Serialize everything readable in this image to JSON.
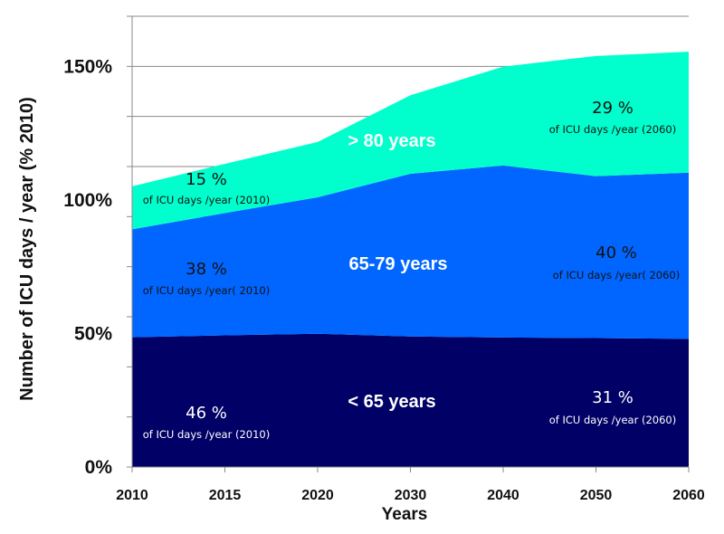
{
  "chart_data": {
    "type": "area",
    "stacked": true,
    "title": "",
    "xlabel": "Years",
    "ylabel": "Number of ICU days / year (% 2010)",
    "categories": [
      "2010",
      "2015",
      "2020",
      "2030",
      "2040",
      "2050",
      "2060"
    ],
    "ylim": [
      0,
      168.75
    ],
    "yticks": [
      0,
      50,
      100,
      150
    ],
    "ytick_labels": [
      "0%",
      "50%",
      "100%",
      "150%"
    ],
    "grid": true,
    "series": [
      {
        "name": "< 65 years",
        "color": "#000066",
        "values": [
          48.6,
          49.3,
          49.9,
          48.9,
          48.5,
          48.3,
          48.0
        ]
      },
      {
        "name": "65-79 years",
        "color": "#0066ff",
        "values": [
          40.4,
          45.8,
          51.1,
          60.9,
          64.4,
          60.6,
          62.2
        ]
      },
      {
        "name": "> 80 years",
        "color": "#00ffcc",
        "values": [
          16.1,
          18.4,
          20.7,
          29.4,
          37.0,
          45.0,
          45.3
        ]
      }
    ],
    "annotations": {
      "young_2010_pct": "46 %",
      "young_2010_sub": "of ICU days /year (2010)",
      "mid_2010_pct": "38 %",
      "mid_2010_sub": "of ICU days /year( 2010)",
      "old_2010_pct": "15 %",
      "old_2010_sub": "of ICU days /year (2010)",
      "young_2060_pct": "31 %",
      "young_2060_sub": "of ICU days /year (2060)",
      "mid_2060_pct": "40 %",
      "mid_2060_sub": "of ICU days /year( 2060)",
      "old_2060_pct": "29 %",
      "old_2060_sub": "of ICU days /year (2060)"
    }
  }
}
